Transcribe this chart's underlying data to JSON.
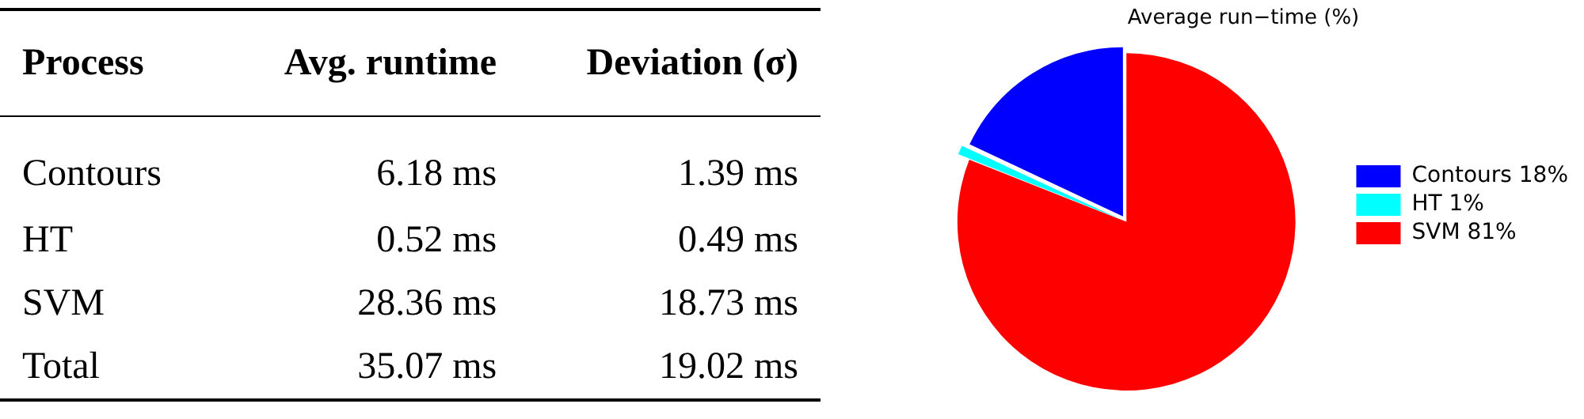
{
  "chart_data": [
    {
      "type": "other",
      "annotations": [
        "Process",
        "Avg. runtime",
        "Deviation (σ)",
        "Contours",
        "6.18 ms",
        "1.39 ms",
        "HT",
        "0.52 ms",
        "0.49 ms",
        "SVM",
        "28.36 ms",
        "18.73 ms",
        "Total",
        "35.07 ms",
        "19.02 ms"
      ]
    },
    {
      "type": "pie",
      "title": "Average run−time (%)",
      "categories": [
        "Contours 18%",
        "HT 1%",
        "SVM 81%"
      ],
      "values": [
        18,
        1,
        81
      ],
      "colors": [
        "#0000ff",
        "#00ffff",
        "#ff0000"
      ],
      "legend": "right"
    }
  ]
}
